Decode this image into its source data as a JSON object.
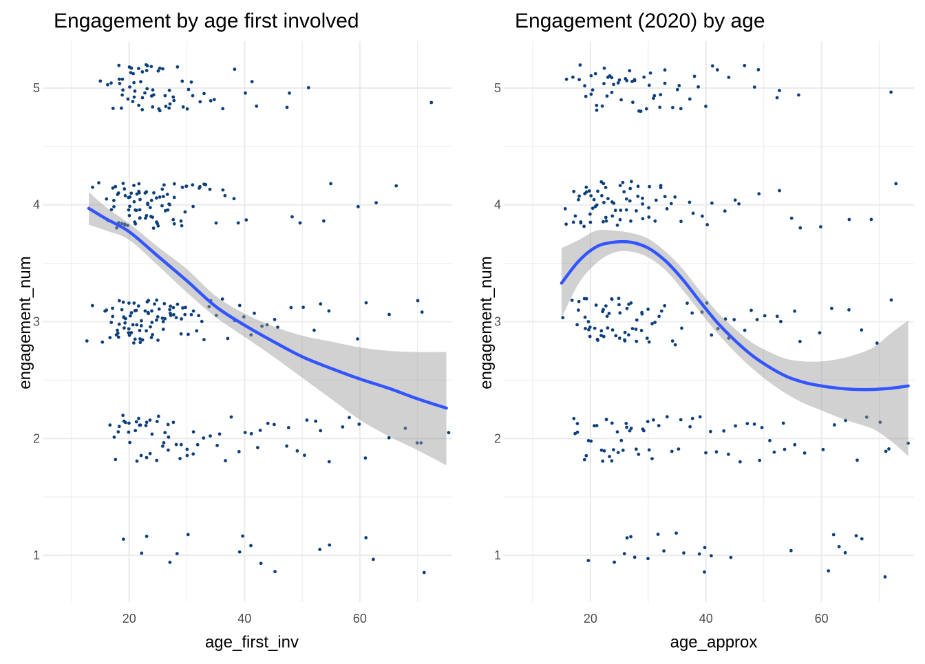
{
  "chart_data": [
    {
      "type": "scatter",
      "title": "Engagement by age first involved",
      "xlabel": "age_first_inv",
      "ylabel": "engagement_num",
      "xlim": [
        5,
        76
      ],
      "ylim": [
        0.6,
        5.4
      ],
      "x_ticks": [
        20,
        40,
        60
      ],
      "y_ticks": [
        1,
        2,
        3,
        4,
        5
      ],
      "jitter": {
        "x": 0.4,
        "y": 0.2
      },
      "grid": true,
      "point_color": "#0d3f7a",
      "smooth": {
        "method": "smooth",
        "color": "#3355ff",
        "band_color": "#999999",
        "fit": [
          [
            13,
            3.97
          ],
          [
            16,
            3.88
          ],
          [
            20,
            3.77
          ],
          [
            25,
            3.56
          ],
          [
            30,
            3.35
          ],
          [
            35,
            3.13
          ],
          [
            40,
            2.97
          ],
          [
            45,
            2.83
          ],
          [
            50,
            2.7
          ],
          [
            55,
            2.6
          ],
          [
            60,
            2.51
          ],
          [
            65,
            2.43
          ],
          [
            70,
            2.34
          ],
          [
            75,
            2.26
          ]
        ],
        "lower": [
          3.83,
          3.78,
          3.7,
          3.48,
          3.25,
          3.04,
          2.87,
          2.7,
          2.52,
          2.34,
          2.16,
          2.02,
          1.9,
          1.77
        ],
        "upper": [
          4.11,
          3.98,
          3.84,
          3.64,
          3.45,
          3.22,
          3.07,
          2.96,
          2.88,
          2.83,
          2.78,
          2.75,
          2.74,
          2.74
        ]
      },
      "groups": [
        {
          "y": 5,
          "x": [
            15,
            16,
            17,
            17,
            18,
            18,
            18,
            19,
            19,
            19,
            19,
            20,
            20,
            20,
            20,
            20,
            21,
            21,
            21,
            21,
            21,
            22,
            22,
            22,
            22,
            22,
            22,
            23,
            23,
            23,
            23,
            23,
            24,
            24,
            24,
            24,
            24,
            25,
            25,
            25,
            25,
            26,
            26,
            26,
            27,
            27,
            27,
            28,
            28,
            28,
            29,
            29,
            30,
            30,
            31,
            31,
            32,
            33,
            34,
            35,
            36,
            38,
            40,
            41,
            42,
            47,
            48,
            51,
            72
          ]
        },
        {
          "y": 4,
          "x": [
            14,
            15,
            16,
            16,
            17,
            17,
            17,
            17,
            18,
            18,
            18,
            18,
            18,
            19,
            19,
            19,
            19,
            19,
            19,
            20,
            20,
            20,
            20,
            20,
            20,
            20,
            21,
            21,
            21,
            21,
            21,
            21,
            21,
            22,
            22,
            22,
            22,
            22,
            22,
            22,
            23,
            23,
            23,
            23,
            23,
            23,
            24,
            24,
            24,
            24,
            24,
            24,
            25,
            25,
            25,
            25,
            25,
            26,
            26,
            26,
            26,
            26,
            27,
            27,
            27,
            27,
            28,
            28,
            28,
            28,
            29,
            29,
            29,
            30,
            30,
            30,
            31,
            31,
            32,
            32,
            33,
            33,
            34,
            35,
            36,
            37,
            38,
            39,
            40,
            48,
            50,
            54,
            55,
            60,
            63,
            66
          ]
        },
        {
          "y": 3,
          "x": [
            13,
            14,
            15,
            16,
            16,
            17,
            17,
            17,
            17,
            18,
            18,
            18,
            18,
            18,
            18,
            19,
            19,
            19,
            19,
            19,
            19,
            19,
            20,
            20,
            20,
            20,
            20,
            20,
            20,
            21,
            21,
            21,
            21,
            21,
            21,
            21,
            22,
            22,
            22,
            22,
            22,
            22,
            22,
            23,
            23,
            23,
            23,
            23,
            23,
            24,
            24,
            24,
            24,
            24,
            24,
            25,
            25,
            25,
            25,
            25,
            26,
            26,
            26,
            26,
            26,
            27,
            27,
            27,
            27,
            28,
            28,
            28,
            28,
            29,
            29,
            29,
            30,
            30,
            30,
            31,
            31,
            32,
            32,
            33,
            33,
            34,
            34,
            35,
            36,
            37,
            38,
            39,
            40,
            41,
            42,
            43,
            44,
            45,
            46,
            48,
            50,
            52,
            53,
            55,
            60,
            61,
            65,
            70,
            71
          ]
        },
        {
          "y": 2,
          "x": [
            17,
            17,
            18,
            18,
            18,
            19,
            19,
            19,
            20,
            20,
            20,
            21,
            21,
            21,
            22,
            22,
            22,
            22,
            23,
            23,
            23,
            24,
            24,
            24,
            25,
            25,
            25,
            26,
            26,
            26,
            27,
            27,
            27,
            28,
            28,
            29,
            29,
            30,
            30,
            31,
            31,
            32,
            33,
            34,
            35,
            36,
            37,
            38,
            39,
            40,
            41,
            42,
            43,
            44,
            45,
            47,
            48,
            49,
            50,
            51,
            52,
            53,
            55,
            57,
            58,
            60,
            61,
            65,
            68,
            70,
            71,
            75
          ]
        },
        {
          "y": 1,
          "x": [
            19,
            22,
            23,
            27,
            28,
            30,
            39,
            40,
            41,
            43,
            45,
            53,
            55,
            61,
            62,
            71
          ]
        }
      ]
    },
    {
      "type": "scatter",
      "title": "Engagement (2020) by age",
      "xlabel": "age_approx",
      "ylabel": "engagement_num",
      "xlim": [
        5,
        76
      ],
      "ylim": [
        0.6,
        5.4
      ],
      "x_ticks": [
        20,
        40,
        60
      ],
      "y_ticks": [
        1,
        2,
        3,
        4,
        5
      ],
      "jitter": {
        "x": 0.4,
        "y": 0.2
      },
      "grid": true,
      "point_color": "#0d3f7a",
      "smooth": {
        "method": "smooth",
        "color": "#3355ff",
        "band_color": "#999999",
        "fit": [
          [
            15,
            3.33
          ],
          [
            18,
            3.52
          ],
          [
            21,
            3.64
          ],
          [
            24,
            3.68
          ],
          [
            27,
            3.68
          ],
          [
            30,
            3.63
          ],
          [
            33,
            3.52
          ],
          [
            36,
            3.36
          ],
          [
            39,
            3.17
          ],
          [
            42,
            2.99
          ],
          [
            45,
            2.84
          ],
          [
            48,
            2.71
          ],
          [
            51,
            2.61
          ],
          [
            54,
            2.53
          ],
          [
            57,
            2.48
          ],
          [
            60,
            2.45
          ],
          [
            63,
            2.43
          ],
          [
            66,
            2.42
          ],
          [
            69,
            2.42
          ],
          [
            72,
            2.43
          ],
          [
            75,
            2.45
          ]
        ],
        "lower": [
          3.03,
          3.33,
          3.5,
          3.59,
          3.6,
          3.55,
          3.44,
          3.27,
          3.08,
          2.9,
          2.74,
          2.6,
          2.48,
          2.38,
          2.3,
          2.24,
          2.18,
          2.13,
          2.08,
          1.98,
          1.85
        ],
        "upper": [
          3.63,
          3.7,
          3.78,
          3.78,
          3.76,
          3.71,
          3.6,
          3.45,
          3.26,
          3.08,
          2.94,
          2.82,
          2.74,
          2.68,
          2.66,
          2.66,
          2.68,
          2.72,
          2.78,
          2.9,
          3.01
        ]
      },
      "groups": [
        {
          "y": 5,
          "x": [
            16,
            17,
            18,
            18,
            19,
            19,
            20,
            20,
            20,
            21,
            21,
            21,
            22,
            22,
            22,
            23,
            23,
            23,
            24,
            24,
            24,
            25,
            25,
            25,
            26,
            26,
            27,
            27,
            27,
            28,
            28,
            28,
            29,
            29,
            30,
            30,
            30,
            31,
            31,
            32,
            32,
            33,
            33,
            34,
            35,
            35,
            36,
            37,
            38,
            39,
            40,
            41,
            42,
            44,
            47,
            48,
            49,
            52,
            53,
            56,
            72
          ]
        },
        {
          "y": 4,
          "x": [
            16,
            16,
            17,
            17,
            17,
            18,
            18,
            18,
            18,
            19,
            19,
            19,
            19,
            20,
            20,
            20,
            20,
            20,
            21,
            21,
            21,
            21,
            22,
            22,
            22,
            22,
            22,
            23,
            23,
            23,
            23,
            24,
            24,
            24,
            24,
            25,
            25,
            25,
            25,
            26,
            26,
            26,
            26,
            27,
            27,
            27,
            27,
            28,
            28,
            28,
            29,
            29,
            29,
            30,
            30,
            30,
            31,
            31,
            32,
            32,
            33,
            33,
            34,
            35,
            36,
            37,
            38,
            39,
            40,
            41,
            43,
            45,
            46,
            49,
            53,
            55,
            56,
            60,
            65,
            69,
            73
          ]
        },
        {
          "y": 3,
          "x": [
            15,
            17,
            18,
            18,
            18,
            19,
            19,
            19,
            19,
            20,
            20,
            20,
            20,
            21,
            21,
            21,
            21,
            22,
            22,
            22,
            22,
            22,
            23,
            23,
            23,
            23,
            24,
            24,
            24,
            24,
            25,
            25,
            25,
            25,
            26,
            26,
            26,
            26,
            27,
            27,
            27,
            27,
            28,
            28,
            28,
            29,
            29,
            29,
            30,
            30,
            30,
            31,
            31,
            32,
            32,
            33,
            34,
            35,
            36,
            37,
            38,
            39,
            40,
            41,
            42,
            43,
            44,
            45,
            47,
            48,
            49,
            50,
            52,
            53,
            55,
            56,
            60,
            62,
            65,
            67,
            70,
            72
          ]
        },
        {
          "y": 2,
          "x": [
            17,
            17,
            18,
            18,
            19,
            19,
            20,
            20,
            21,
            21,
            22,
            22,
            22,
            23,
            23,
            23,
            24,
            24,
            24,
            25,
            25,
            25,
            26,
            26,
            26,
            27,
            27,
            28,
            28,
            29,
            29,
            30,
            30,
            31,
            31,
            32,
            33,
            34,
            35,
            36,
            37,
            38,
            39,
            40,
            41,
            42,
            43,
            44,
            45,
            46,
            47,
            48,
            49,
            50,
            51,
            52,
            53,
            54,
            55,
            57,
            60,
            62,
            64,
            66,
            68,
            70,
            71,
            72,
            75
          ]
        },
        {
          "y": 1,
          "x": [
            20,
            24,
            26,
            26,
            27,
            28,
            30,
            32,
            33,
            35,
            36,
            39,
            40,
            40,
            41,
            44,
            55,
            61,
            62,
            63,
            64,
            66,
            67,
            71
          ]
        }
      ]
    }
  ]
}
